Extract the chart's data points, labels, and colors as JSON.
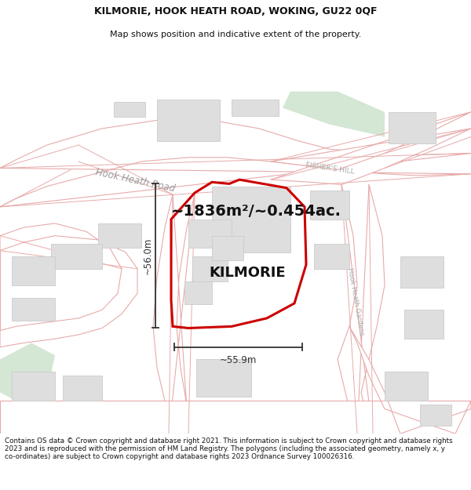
{
  "title_line1": "KILMORIE, HOOK HEATH ROAD, WOKING, GU22 0QF",
  "title_line2": "Map shows position and indicative extent of the property.",
  "property_label": "KILMORIE",
  "area_label": "~1836m²/~0.454ac.",
  "dim_vertical": "~56.0m",
  "dim_horizontal": "~55.9m",
  "road_label1": "Hook Heath Road",
  "road_label2": "FISHER'S HILL",
  "road_label3": "Hook Heath Gardens",
  "footer_text": "Contains OS data © Crown copyright and database right 2021. This information is subject to Crown copyright and database rights 2023 and is reproduced with the permission of HM Land Registry. The polygons (including the associated geometry, namely x, y co-ordinates) are subject to Crown copyright and database rights 2023 Ordnance Survey 100026316.",
  "map_bg": "#f2efef",
  "road_fill": "#ffffff",
  "road_gray_fill": "#e8e8e8",
  "road_stroke": "#e8aaaa",
  "road_gray_stroke": "#b8b8b8",
  "property_polygon_color": "#cc0000",
  "building_fill": "#dedede",
  "building_stroke": "#cccccc",
  "green_fill": "#d4e6d4",
  "dim_color": "#333333",
  "label_color": "#222222",
  "road_text_color": "#999999",
  "fisher_text_color": "#aaaaaa"
}
